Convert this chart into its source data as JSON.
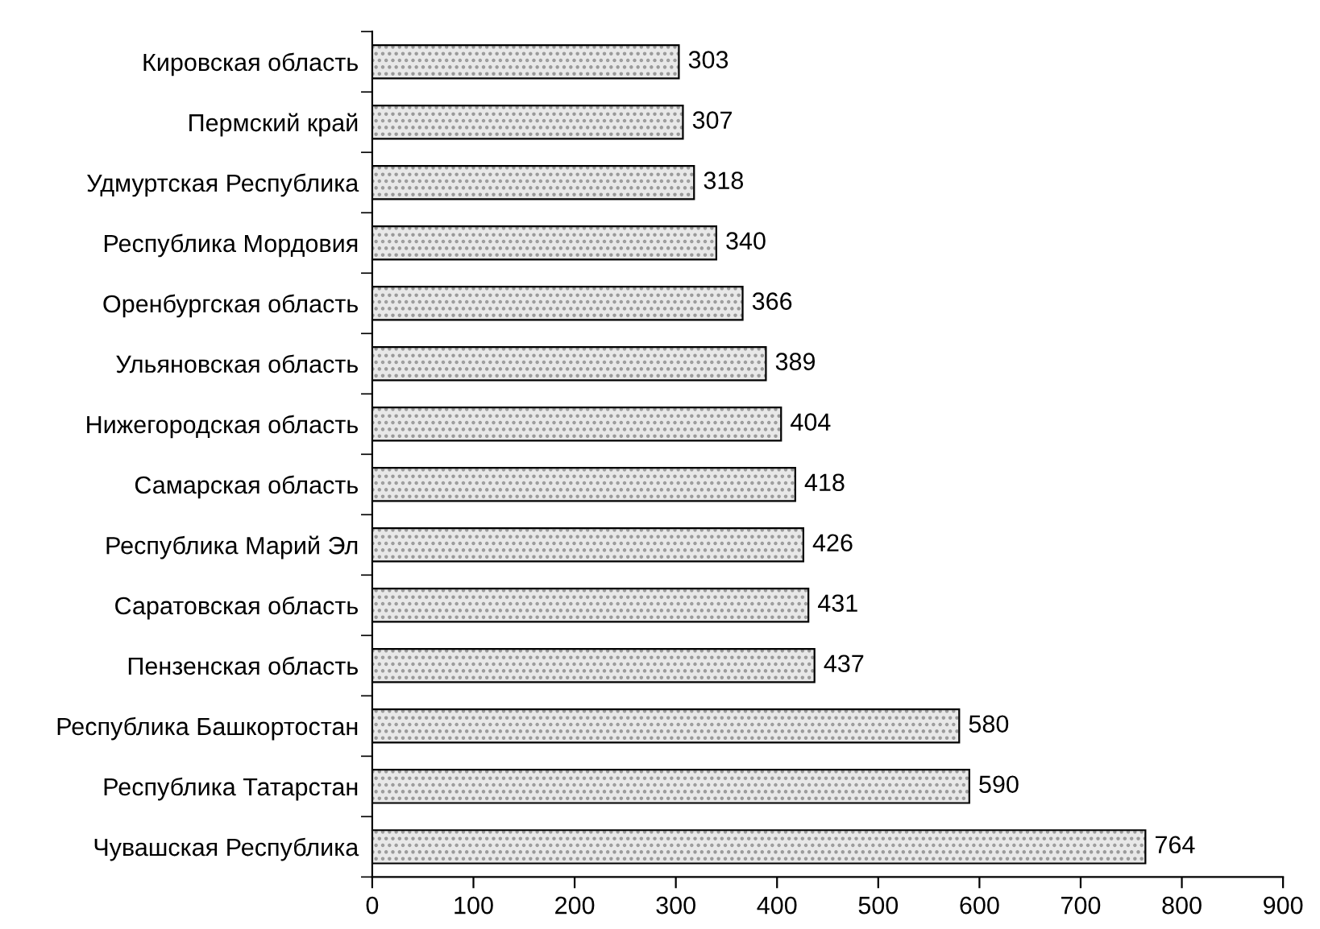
{
  "chart_data": {
    "type": "bar",
    "orientation": "horizontal",
    "categories": [
      "Кировская область",
      "Пермский край",
      "Удмуртская Республика",
      "Республика Мордовия",
      "Оренбургская область",
      "Ульяновская область",
      "Нижегородская область",
      "Самарская область",
      "Республика Марий Эл",
      "Саратовская область",
      "Пензенская область",
      "Республика Башкортостан",
      "Республика Татарстан",
      "Чувашская Республика"
    ],
    "values": [
      303,
      307,
      318,
      340,
      366,
      389,
      404,
      418,
      426,
      431,
      437,
      580,
      590,
      764
    ],
    "color": "#e8e8e8",
    "xlim": [
      0,
      900
    ],
    "xticks": [
      0,
      100,
      200,
      300,
      400,
      500,
      600,
      700,
      800,
      900
    ],
    "data_labels": true,
    "grid": false,
    "legend": false
  }
}
